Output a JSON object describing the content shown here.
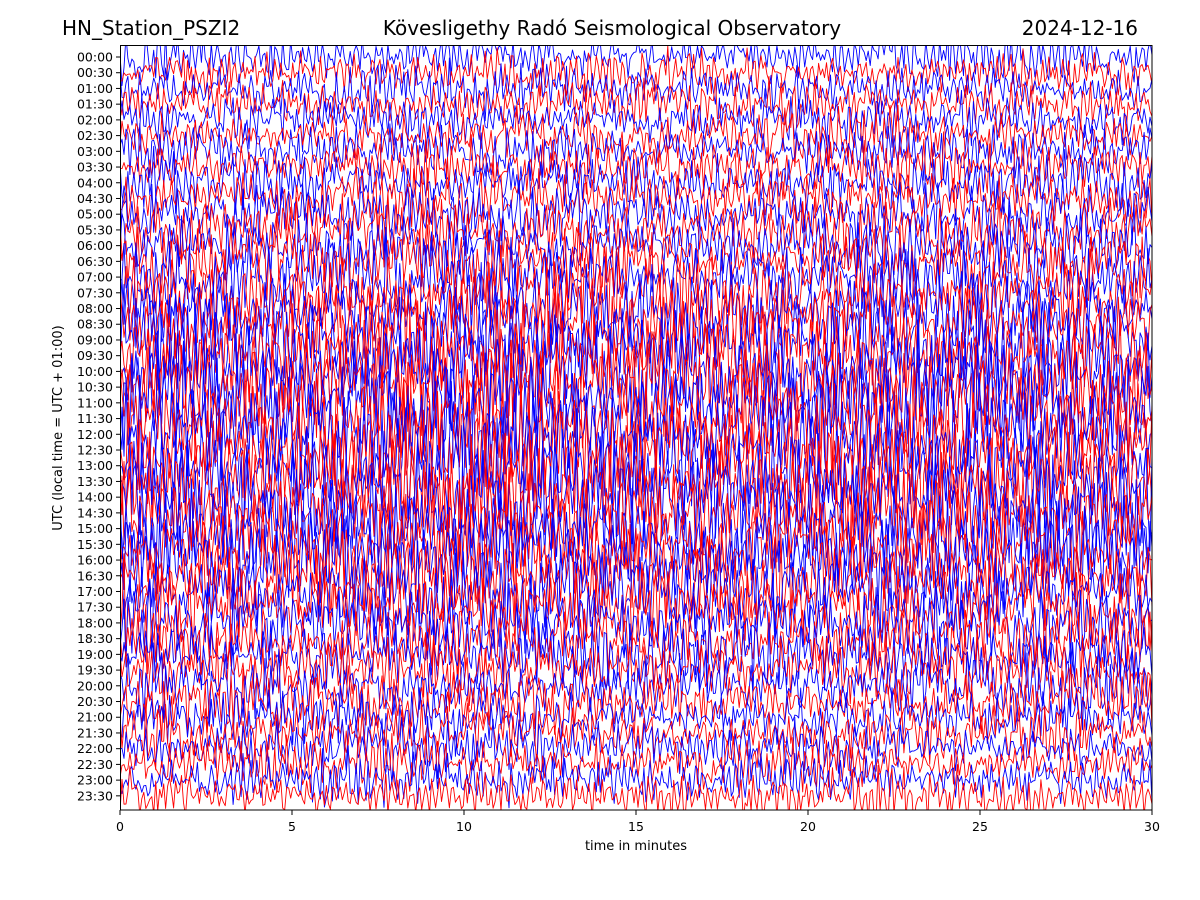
{
  "header": {
    "station": "HN_Station_PSZI2",
    "observatory": "Kövesligethy Radó Seismological Observatory",
    "date": "2024-12-16"
  },
  "chart_data": {
    "type": "line",
    "xlabel": "time in minutes",
    "ylabel": "UTC (local time = UTC + 01:00)",
    "xlim": [
      0,
      30
    ],
    "xticks": [
      0,
      5,
      10,
      15,
      20,
      25,
      30
    ],
    "yticks": [
      "00:00",
      "00:30",
      "01:00",
      "01:30",
      "02:00",
      "02:30",
      "03:00",
      "03:30",
      "04:00",
      "04:30",
      "05:00",
      "05:30",
      "06:00",
      "06:30",
      "07:00",
      "07:30",
      "08:00",
      "08:30",
      "09:00",
      "09:30",
      "10:00",
      "10:30",
      "11:00",
      "11:30",
      "12:00",
      "12:30",
      "13:00",
      "13:30",
      "14:00",
      "14:30",
      "15:00",
      "15:30",
      "16:00",
      "16:30",
      "17:00",
      "17:30",
      "18:00",
      "18:30",
      "19:00",
      "19:30",
      "20:00",
      "20:30",
      "21:00",
      "21:30",
      "22:00",
      "22:30",
      "23:00",
      "23:30"
    ],
    "trace_colors": [
      "#0000ff",
      "#ff0000"
    ],
    "grid": false,
    "legend": "none"
  }
}
